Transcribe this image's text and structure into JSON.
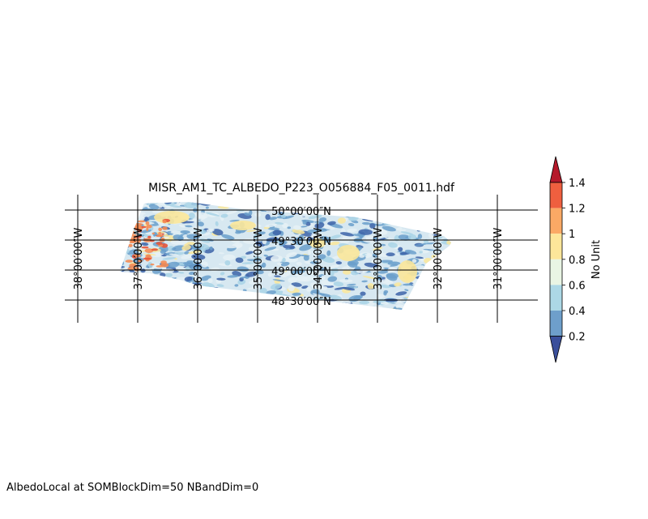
{
  "title": "MISR_AM1_TC_ALBEDO_P223_O056884_F05_0011.hdf",
  "footer": "AlbedoLocal at SOMBlockDim=50 NBandDim=0",
  "map": {
    "projection": "lat-lon swath",
    "latitude_labels": [
      "50°00′00″N",
      "49°30′00″N",
      "49°00′00″N",
      "48°30′00″N"
    ],
    "longitude_labels": [
      "38°00′00″W",
      "37°00′00″W",
      "36°00′00″W",
      "35°00′00″W",
      "34°00′00″W",
      "33°00′00″W",
      "32°00′00″W",
      "31°00′00″W"
    ],
    "grid": true
  },
  "colorbar": {
    "label": "No Unit",
    "ticks": [
      "1.4",
      "1.2",
      "1",
      "0.8",
      "0.6",
      "0.4",
      "0.2"
    ],
    "levels": [
      0.2,
      0.4,
      0.6,
      0.8,
      1.0,
      1.2,
      1.4
    ],
    "colors": [
      "#4575b4",
      "#74add1",
      "#abd9e9",
      "#e0f3f8",
      "#fee090",
      "#fdae61",
      "#f46d43",
      "#d73027"
    ],
    "extend": "both"
  },
  "palette": {
    "swath_light": "#e6f1f6",
    "swath_blue": "#6a9fcb",
    "swath_dark": "#3c63a8",
    "swath_yellow": "#fbe79a",
    "swath_orange": "#f58c54"
  }
}
